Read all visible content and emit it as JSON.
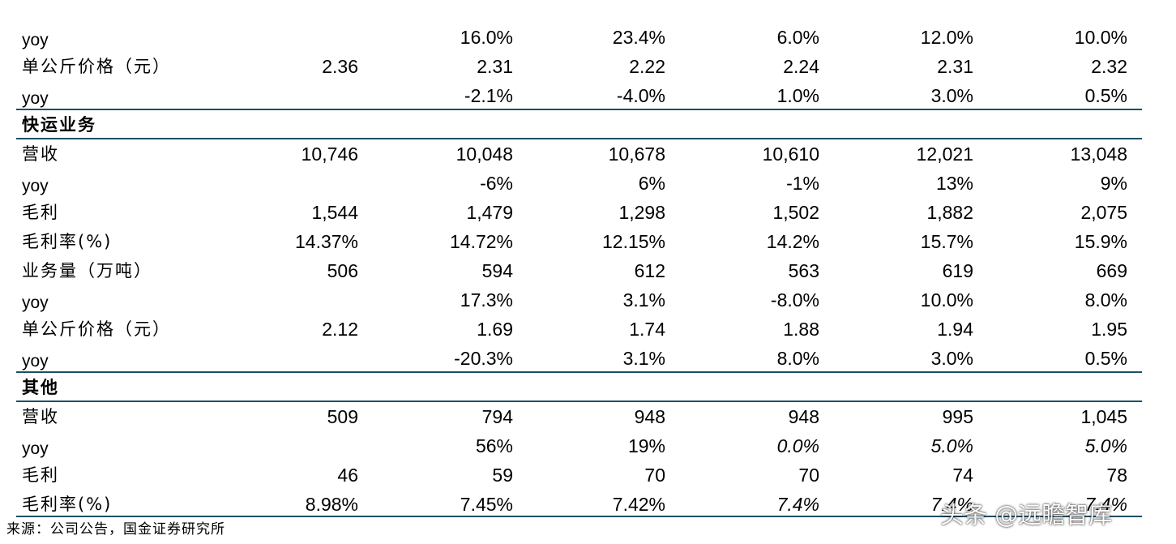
{
  "rows_top": [
    {
      "label": "yoy",
      "latin": true,
      "values": [
        "",
        "16.0%",
        "23.4%",
        "6.0%",
        "12.0%",
        "10.0%"
      ]
    },
    {
      "label": "单公斤价格（元）",
      "latin": false,
      "values": [
        "2.36",
        "2.31",
        "2.22",
        "2.24",
        "2.31",
        "2.32"
      ]
    },
    {
      "label": "yoy",
      "latin": true,
      "values": [
        "",
        "-2.1%",
        "-4.0%",
        "1.0%",
        "3.0%",
        "0.5%"
      ]
    }
  ],
  "sections": [
    {
      "title": "快运业务",
      "rows": [
        {
          "label": "营收",
          "latin": false,
          "values": [
            "10,746",
            "10,048",
            "10,678",
            "10,610",
            "12,021",
            "13,048"
          ]
        },
        {
          "label": "yoy",
          "latin": true,
          "values": [
            "",
            "-6%",
            "6%",
            "-1%",
            "13%",
            "9%"
          ]
        },
        {
          "label": "毛利",
          "latin": false,
          "values": [
            "1,544",
            "1,479",
            "1,298",
            "1,502",
            "1,882",
            "2,075"
          ]
        },
        {
          "label": "毛利率(%)",
          "latin": false,
          "values": [
            "14.37%",
            "14.72%",
            "12.15%",
            "14.2%",
            "15.7%",
            "15.9%"
          ]
        },
        {
          "label": "业务量（万吨）",
          "latin": false,
          "values": [
            "506",
            "594",
            "612",
            "563",
            "619",
            "669"
          ]
        },
        {
          "label": "yoy",
          "latin": true,
          "values": [
            "",
            "17.3%",
            "3.1%",
            "-8.0%",
            "10.0%",
            "8.0%"
          ]
        },
        {
          "label": "单公斤价格（元）",
          "latin": false,
          "values": [
            "2.12",
            "1.69",
            "1.74",
            "1.88",
            "1.94",
            "1.95"
          ]
        },
        {
          "label": "yoy",
          "latin": true,
          "values": [
            "",
            "-20.3%",
            "3.1%",
            "8.0%",
            "3.0%",
            "0.5%"
          ]
        }
      ]
    },
    {
      "title": "其他",
      "rows": [
        {
          "label": "营收",
          "latin": false,
          "values": [
            "509",
            "794",
            "948",
            "948",
            "995",
            "1,045"
          ]
        },
        {
          "label": "yoy",
          "latin": true,
          "values": [
            "",
            "56%",
            "19%",
            "0.0%",
            "5.0%",
            "5.0%"
          ],
          "italic_from": 3
        },
        {
          "label": "毛利",
          "latin": false,
          "values": [
            "46",
            "59",
            "70",
            "70",
            "74",
            "78"
          ]
        },
        {
          "label": "毛利率(%)",
          "latin": false,
          "values": [
            "8.98%",
            "7.45%",
            "7.42%",
            "7.4%",
            "7.4%",
            "7.4%"
          ],
          "italic_from": 3
        }
      ]
    }
  ],
  "source": "来源：公司公告，国金证券研究所",
  "watermark": "头条 @远瞻智库",
  "colors": {
    "rule": "#1f4e66",
    "text": "#000000",
    "background": "#ffffff"
  }
}
